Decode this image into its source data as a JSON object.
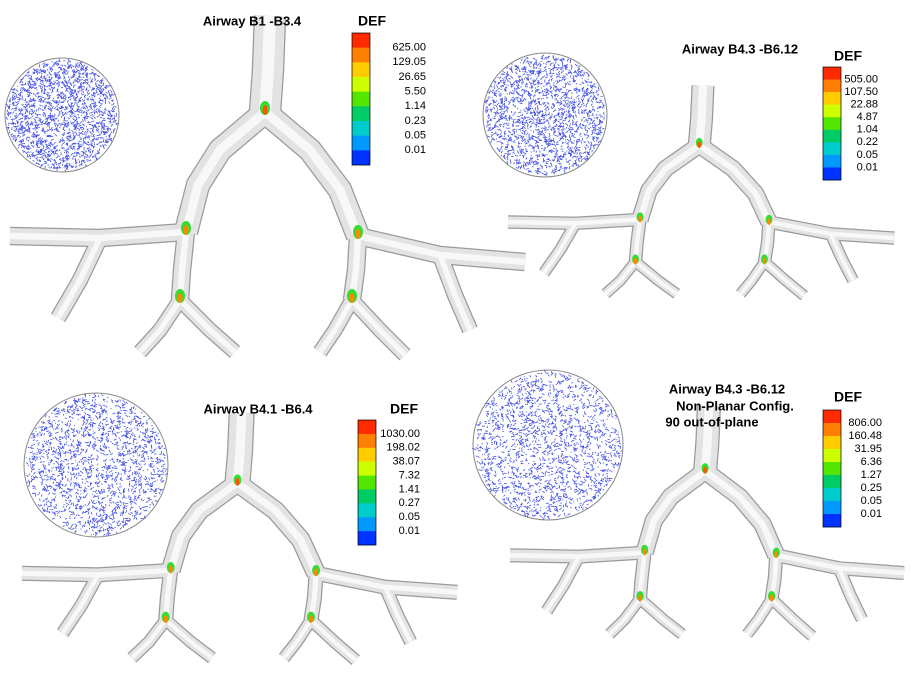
{
  "panels": [
    {
      "title": [
        "Airway B1 -B3.4"
      ],
      "legend_title": "DEF",
      "legend_labels": [
        "625.00",
        "129.05",
        "26.65",
        "5.50",
        "1.14",
        "0.23",
        "0.05",
        "0.01"
      ]
    },
    {
      "title": [
        "Airway B4.3 -B6.12"
      ],
      "legend_title": "DEF",
      "legend_labels": [
        "505.00",
        "107.50",
        "22.88",
        "4.87",
        "1.04",
        "0.22",
        "0.05",
        "0.01"
      ]
    },
    {
      "title": [
        "Airway B4.1 -B6.4"
      ],
      "legend_title": "DEF",
      "legend_labels": [
        "1030.00",
        "198.02",
        "38.07",
        "7.32",
        "1.41",
        "0.27",
        "0.05",
        "0.01"
      ]
    },
    {
      "title": [
        "Airway B4.3 -B6.12",
        "Non-Planar Config.",
        "90 out-of-plane"
      ],
      "legend_title": "DEF",
      "legend_labels": [
        "806.00",
        "160.48",
        "31.95",
        "6.36",
        "1.27",
        "0.25",
        "0.05",
        "0.01"
      ]
    }
  ]
}
